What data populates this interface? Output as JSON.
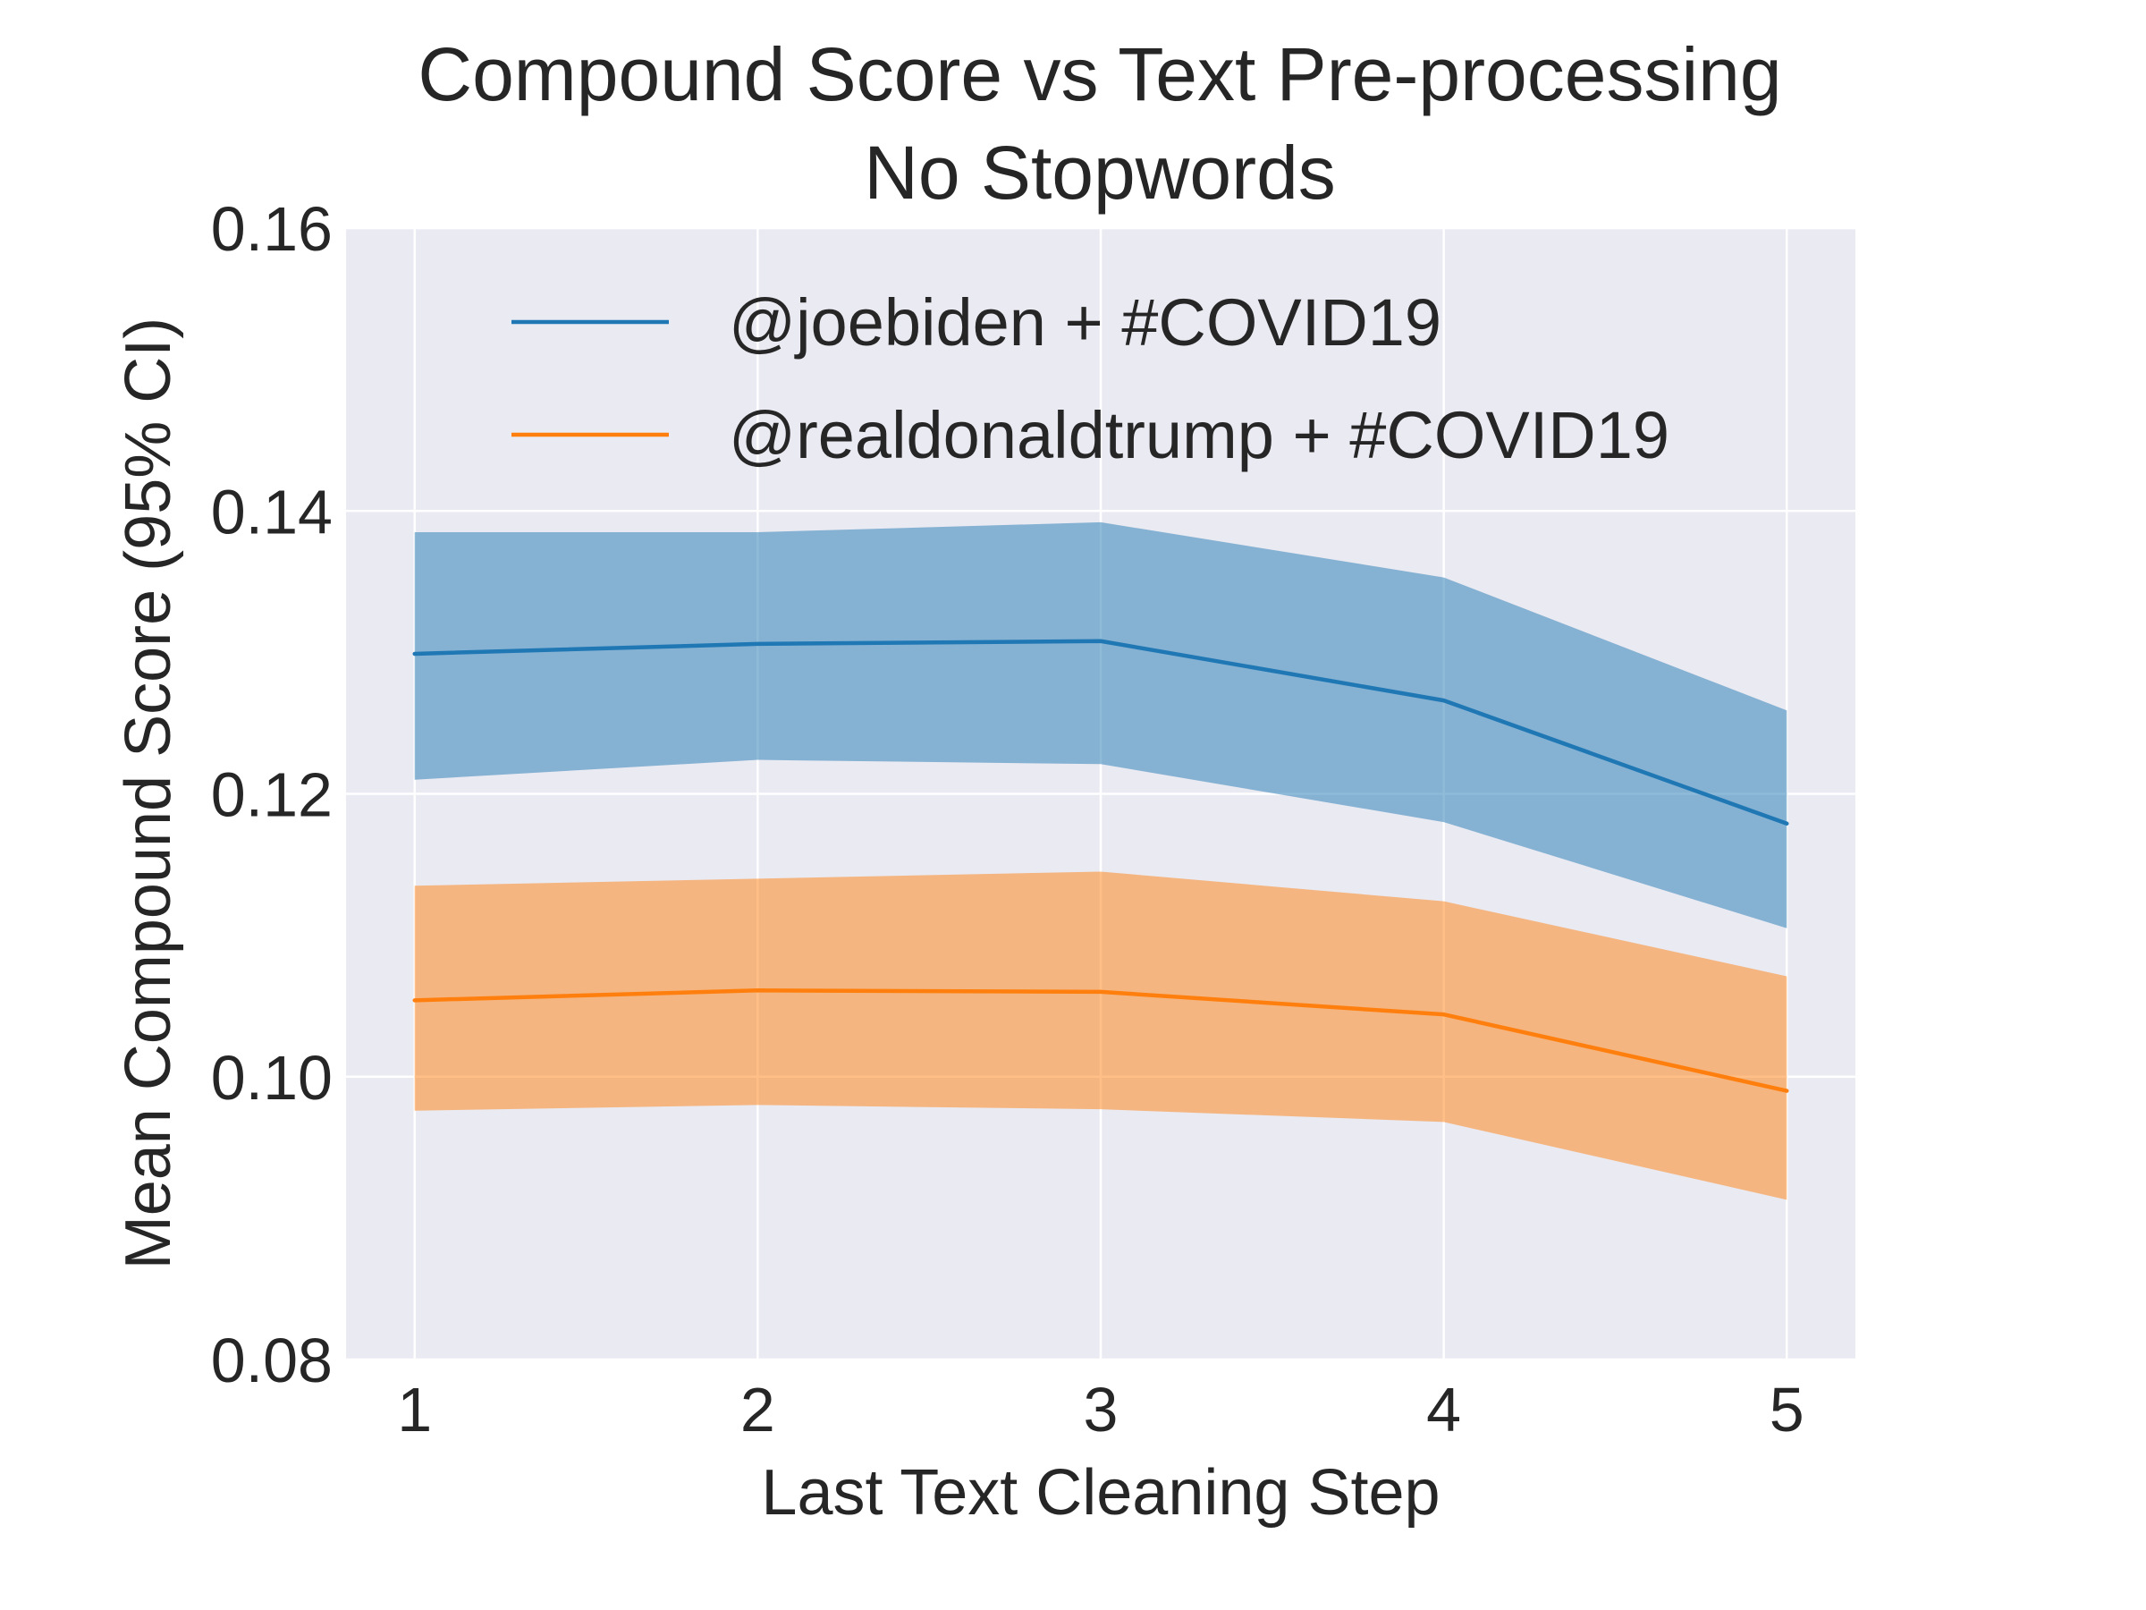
{
  "chart_data": {
    "type": "line",
    "title": "Compound Score vs Text Pre-processing",
    "subtitle": "No Stopwords",
    "xlabel": "Last Text Cleaning Step",
    "ylabel": "Mean Compound Score (95% CI)",
    "x": [
      1,
      2,
      3,
      4,
      5
    ],
    "xticks": [
      "1",
      "2",
      "3",
      "4",
      "5"
    ],
    "xlim": [
      0.8,
      5.2
    ],
    "ylim": [
      0.08,
      0.16
    ],
    "yticks": [
      "0.08",
      "0.10",
      "0.12",
      "0.14",
      "0.16"
    ],
    "grid": true,
    "legend_position": "top",
    "series": [
      {
        "name": "@joebiden + #COVID19",
        "color": "#1f77b4",
        "values": [
          0.1299,
          0.1306,
          0.1308,
          0.1266,
          0.1179
        ],
        "ci_lower": [
          0.121,
          0.1224,
          0.1221,
          0.118,
          0.1105
        ],
        "ci_upper": [
          0.1385,
          0.1385,
          0.1392,
          0.1353,
          0.1259
        ]
      },
      {
        "name": "@realdonaldtrump + #COVID19",
        "color": "#ff7f0e",
        "values": [
          0.1054,
          0.1061,
          0.106,
          0.1044,
          0.099
        ],
        "ci_lower": [
          0.0976,
          0.098,
          0.0977,
          0.0968,
          0.0913
        ],
        "ci_upper": [
          0.1135,
          0.114,
          0.1145,
          0.1124,
          0.1071
        ]
      }
    ]
  }
}
